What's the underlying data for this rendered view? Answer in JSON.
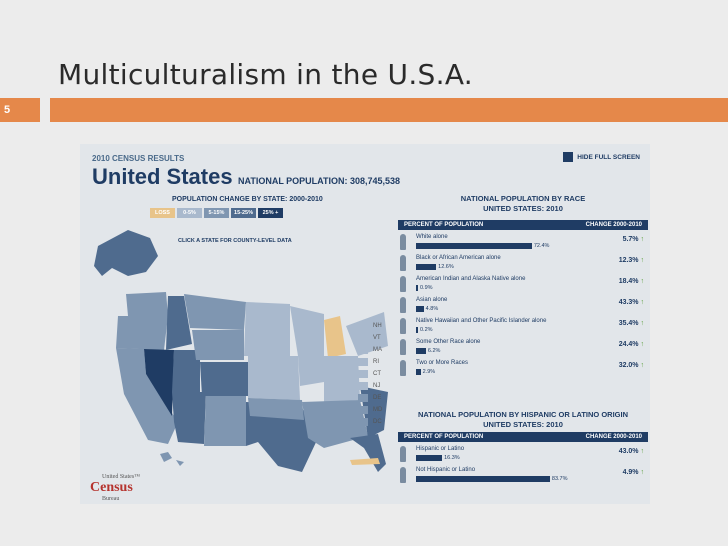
{
  "slide": {
    "title": "Multiculturalism in the U.S.A.",
    "number": "5",
    "accent": "#e5884a"
  },
  "panel": {
    "header_small": "2010 CENSUS RESULTS",
    "title": "United States",
    "national_population": "NATIONAL POPULATION: 308,745,538",
    "hide_full_screen": "HIDE FULL SCREEN",
    "pop_change_title": "POPULATION CHANGE BY STATE: 2000-2010",
    "click_hint": "CLICK A STATE FOR COUNTY-LEVEL DATA",
    "legend": [
      {
        "label": "LOSS",
        "color": "#e8c48a"
      },
      {
        "label": "0-5%",
        "color": "#a9b9cd"
      },
      {
        "label": "5-15%",
        "color": "#7f96b1"
      },
      {
        "label": "15-25%",
        "color": "#4f6b8e"
      },
      {
        "label": "25% +",
        "color": "#1f3c64"
      }
    ],
    "ne_states": [
      "NH",
      "VT",
      "MA",
      "RI",
      "CT",
      "NJ",
      "DE",
      "MD",
      "DC"
    ],
    "census_logo": "Census",
    "census_logo_small": "United States™",
    "census_bureau": "Bureau"
  },
  "chart_data": [
    {
      "type": "bar",
      "title": "NATIONAL POPULATION BY RACE",
      "subtitle": "UNITED STATES: 2010",
      "column_left": "PERCENT OF POPULATION",
      "column_right": "CHANGE 2000-2010",
      "categories": [
        "White alone",
        "Black or African American alone",
        "American Indian and Alaska Native alone",
        "Asian alone",
        "Native Hawaiian and Other Pacific Islander alone",
        "Some Other Race alone",
        "Two or More Races"
      ],
      "values": [
        72.4,
        12.6,
        0.9,
        4.8,
        0.2,
        6.2,
        2.9
      ],
      "value_labels": [
        "72.4%",
        "12.6%",
        "0.9%",
        "4.8%",
        "0.2%",
        "6.2%",
        "2.9%"
      ],
      "change_labels": [
        "5.7%",
        "12.3%",
        "18.4%",
        "43.3%",
        "35.4%",
        "24.4%",
        "32.0%"
      ],
      "xlim": [
        0,
        100
      ]
    },
    {
      "type": "bar",
      "title": "NATIONAL POPULATION BY HISPANIC OR LATINO ORIGIN",
      "subtitle": "UNITED STATES: 2010",
      "column_left": "PERCENT OF POPULATION",
      "column_right": "CHANGE 2000-2010",
      "categories": [
        "Hispanic or Latino",
        "Not Hispanic or Latino"
      ],
      "values": [
        16.3,
        83.7
      ],
      "value_labels": [
        "16.3%",
        "83.7%"
      ],
      "change_labels": [
        "43.0%",
        "4.9%"
      ],
      "xlim": [
        0,
        100
      ]
    }
  ]
}
